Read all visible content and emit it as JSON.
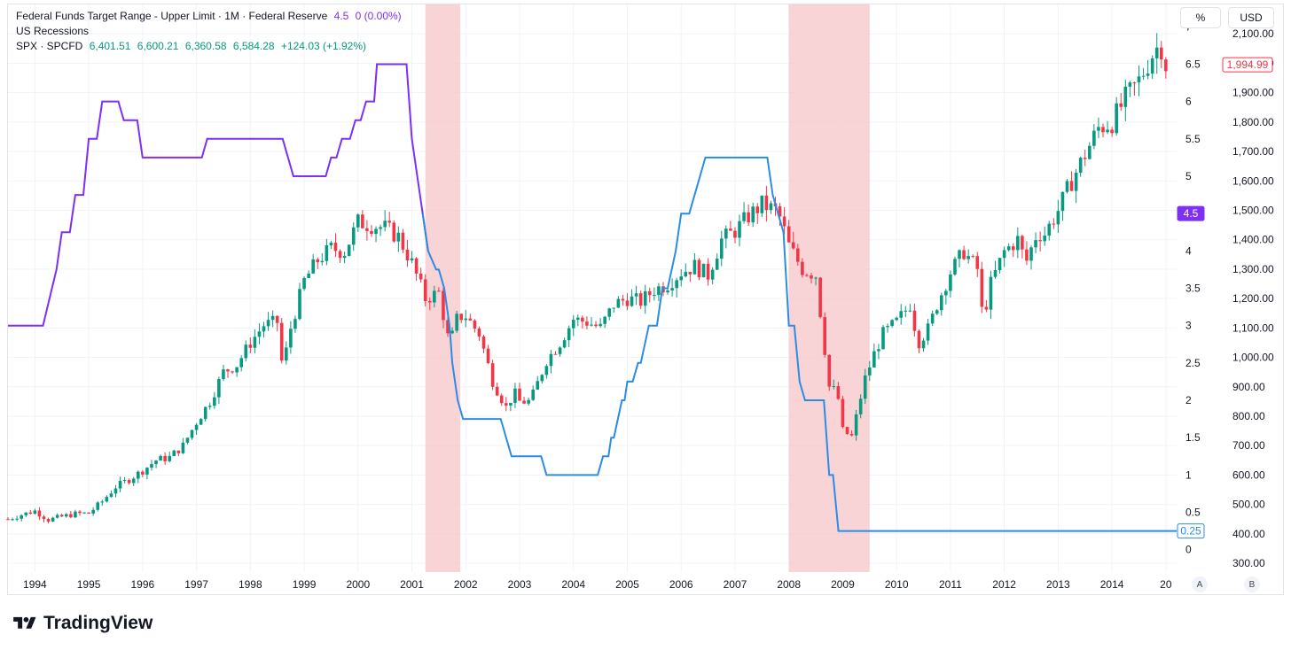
{
  "legend": {
    "fedfunds": {
      "title": "Federal Funds Target Range - Upper Limit · 1M · Federal Reserve",
      "value": "4.5",
      "change": "0 (0.00%)"
    },
    "recessions": {
      "title": "US Recessions"
    },
    "spx": {
      "title": "SPX · SPCFD",
      "open": "6,401.51",
      "high": "6,600.21",
      "low": "6,360.58",
      "close": "6,584.28",
      "change": "+124.03 (+1.92%)"
    }
  },
  "scales": {
    "left_unit": "%",
    "right_unit": "USD",
    "auto_label": "A",
    "log_label": "B"
  },
  "brand": {
    "name": "TradingView"
  },
  "colors": {
    "up": "#089981",
    "down": "#f23645",
    "fed_purple": "#7e2ff5",
    "fed_blue": "#2b8ce6",
    "recession": "#f7c5ca",
    "grid": "#f0f3fa",
    "text": "#131722",
    "price_tag": "#f23645"
  },
  "chart_data": {
    "type": "candlestick+line",
    "x_range": [
      1993.5,
      2015.2
    ],
    "x_tick_labels": [
      "1994",
      "1995",
      "1996",
      "1997",
      "1998",
      "1999",
      "2000",
      "2001",
      "2002",
      "2003",
      "2004",
      "2005",
      "2006",
      "2007",
      "2008",
      "2009",
      "2010",
      "2011",
      "2012",
      "2013",
      "2014",
      "20"
    ],
    "left_axis": {
      "unit": "%",
      "range": [
        -0.3,
        7.3
      ],
      "ticks": [
        "0",
        "0.5",
        "1",
        "1.5",
        "2",
        "2.5",
        "3",
        "3.5",
        "4",
        "4.5",
        "5",
        "5.5",
        "6",
        "6.5",
        "7"
      ]
    },
    "right_axis": {
      "unit": "USD",
      "range": [
        270,
        2200
      ],
      "ticks": [
        "300.00",
        "400.00",
        "500.00",
        "600.00",
        "700.00",
        "800.00",
        "900.00",
        "1,000.00",
        "1,100.00",
        "1,200.00",
        "1,300.00",
        "1,400.00",
        "1,500.00",
        "1,600.00",
        "1,700.00",
        "1,800.00",
        "1,900.00",
        "2,000.00",
        "2,100.00"
      ]
    },
    "recessions": [
      [
        2001.25,
        2001.9
      ],
      [
        2008.0,
        2009.5
      ]
    ],
    "fed_funds_upper": [
      [
        1993.5,
        3.0
      ],
      [
        1994.15,
        3.0
      ],
      [
        1994.4,
        3.75
      ],
      [
        1994.5,
        4.25
      ],
      [
        1994.65,
        4.25
      ],
      [
        1994.75,
        4.75
      ],
      [
        1994.9,
        4.75
      ],
      [
        1995.0,
        5.5
      ],
      [
        1995.15,
        5.5
      ],
      [
        1995.25,
        6.0
      ],
      [
        1995.55,
        6.0
      ],
      [
        1995.65,
        5.75
      ],
      [
        1995.9,
        5.75
      ],
      [
        1996.0,
        5.25
      ],
      [
        1997.1,
        5.25
      ],
      [
        1997.2,
        5.5
      ],
      [
        1998.6,
        5.5
      ],
      [
        1998.8,
        5.0
      ],
      [
        1999.4,
        5.0
      ],
      [
        1999.5,
        5.25
      ],
      [
        1999.6,
        5.25
      ],
      [
        1999.7,
        5.5
      ],
      [
        1999.85,
        5.5
      ],
      [
        1999.95,
        5.75
      ],
      [
        2000.05,
        5.75
      ],
      [
        2000.15,
        6.0
      ],
      [
        2000.3,
        6.0
      ],
      [
        2000.35,
        6.5
      ],
      [
        2000.5,
        6.5
      ],
      [
        2000.9,
        6.5
      ],
      [
        2001.0,
        5.5
      ],
      [
        2001.1,
        5.0
      ],
      [
        2001.2,
        4.5
      ],
      [
        2001.3,
        4.0
      ],
      [
        2001.45,
        3.75
      ],
      [
        2001.5,
        3.75
      ],
      [
        2001.6,
        3.5
      ],
      [
        2001.7,
        3.0
      ],
      [
        2001.75,
        2.5
      ],
      [
        2001.85,
        2.0
      ],
      [
        2001.95,
        1.75
      ],
      [
        2002.65,
        1.75
      ],
      [
        2002.85,
        1.25
      ],
      [
        2003.4,
        1.25
      ],
      [
        2003.5,
        1.0
      ],
      [
        2004.45,
        1.0
      ],
      [
        2004.55,
        1.25
      ],
      [
        2004.65,
        1.25
      ],
      [
        2004.7,
        1.5
      ],
      [
        2004.75,
        1.5
      ],
      [
        2004.9,
        2.0
      ],
      [
        2004.95,
        2.0
      ],
      [
        2005.0,
        2.25
      ],
      [
        2005.1,
        2.25
      ],
      [
        2005.2,
        2.5
      ],
      [
        2005.25,
        2.5
      ],
      [
        2005.4,
        3.0
      ],
      [
        2005.55,
        3.0
      ],
      [
        2005.65,
        3.5
      ],
      [
        2005.75,
        3.5
      ],
      [
        2005.9,
        4.0
      ],
      [
        2006.0,
        4.5
      ],
      [
        2006.15,
        4.5
      ],
      [
        2006.25,
        4.75
      ],
      [
        2006.35,
        5.0
      ],
      [
        2006.45,
        5.25
      ],
      [
        2007.6,
        5.25
      ],
      [
        2007.7,
        4.75
      ],
      [
        2007.8,
        4.5
      ],
      [
        2007.9,
        4.25
      ],
      [
        2008.0,
        3.0
      ],
      [
        2008.1,
        3.0
      ],
      [
        2008.2,
        2.25
      ],
      [
        2008.3,
        2.0
      ],
      [
        2008.65,
        2.0
      ],
      [
        2008.75,
        1.0
      ],
      [
        2008.82,
        1.0
      ],
      [
        2008.92,
        0.25
      ],
      [
        2015.2,
        0.25
      ]
    ],
    "spx_monthly_close": [
      [
        1993.5,
        450
      ],
      [
        1993.75,
        465
      ],
      [
        1994.0,
        478
      ],
      [
        1994.25,
        448
      ],
      [
        1994.5,
        458
      ],
      [
        1994.75,
        468
      ],
      [
        1995.0,
        470
      ],
      [
        1995.25,
        510
      ],
      [
        1995.5,
        560
      ],
      [
        1995.75,
        585
      ],
      [
        1996.0,
        615
      ],
      [
        1996.25,
        650
      ],
      [
        1996.5,
        660
      ],
      [
        1996.75,
        700
      ],
      [
        1997.0,
        780
      ],
      [
        1997.25,
        850
      ],
      [
        1997.5,
        950
      ],
      [
        1997.75,
        975
      ],
      [
        1998.0,
        1050
      ],
      [
        1998.25,
        1110
      ],
      [
        1998.5,
        1120
      ],
      [
        1998.6,
        960
      ],
      [
        1998.75,
        1100
      ],
      [
        1999.0,
        1260
      ],
      [
        1999.25,
        1330
      ],
      [
        1999.5,
        1370
      ],
      [
        1999.75,
        1360
      ],
      [
        2000.0,
        1460
      ],
      [
        2000.25,
        1450
      ],
      [
        2000.5,
        1440
      ],
      [
        2000.75,
        1410
      ],
      [
        2001.0,
        1320
      ],
      [
        2001.25,
        1200
      ],
      [
        2001.5,
        1220
      ],
      [
        2001.7,
        1040
      ],
      [
        2001.85,
        1140
      ],
      [
        2002.0,
        1140
      ],
      [
        2002.25,
        1080
      ],
      [
        2002.5,
        920
      ],
      [
        2002.75,
        830
      ],
      [
        2002.9,
        880
      ],
      [
        2003.0,
        850
      ],
      [
        2003.2,
        850
      ],
      [
        2003.5,
        990
      ],
      [
        2003.75,
        1050
      ],
      [
        2004.0,
        1130
      ],
      [
        2004.25,
        1120
      ],
      [
        2004.5,
        1100
      ],
      [
        2004.75,
        1180
      ],
      [
        2005.0,
        1200
      ],
      [
        2005.25,
        1190
      ],
      [
        2005.5,
        1230
      ],
      [
        2005.75,
        1250
      ],
      [
        2006.0,
        1290
      ],
      [
        2006.25,
        1310
      ],
      [
        2006.5,
        1280
      ],
      [
        2006.75,
        1400
      ],
      [
        2007.0,
        1430
      ],
      [
        2007.25,
        1480
      ],
      [
        2007.5,
        1520
      ],
      [
        2007.75,
        1500
      ],
      [
        2007.85,
        1470
      ],
      [
        2008.0,
        1380
      ],
      [
        2008.25,
        1300
      ],
      [
        2008.5,
        1280
      ],
      [
        2008.75,
        900
      ],
      [
        2008.9,
        880
      ],
      [
        2009.0,
        750
      ],
      [
        2009.17,
        730
      ],
      [
        2009.4,
        920
      ],
      [
        2009.6,
        1020
      ],
      [
        2009.75,
        1080
      ],
      [
        2010.0,
        1120
      ],
      [
        2010.25,
        1180
      ],
      [
        2010.4,
        1050
      ],
      [
        2010.6,
        1100
      ],
      [
        2010.75,
        1180
      ],
      [
        2011.0,
        1290
      ],
      [
        2011.25,
        1360
      ],
      [
        2011.5,
        1300
      ],
      [
        2011.6,
        1130
      ],
      [
        2011.75,
        1250
      ],
      [
        2012.0,
        1360
      ],
      [
        2012.25,
        1400
      ],
      [
        2012.4,
        1320
      ],
      [
        2012.6,
        1420
      ],
      [
        2012.75,
        1420
      ],
      [
        2013.0,
        1500
      ],
      [
        2013.25,
        1600
      ],
      [
        2013.5,
        1690
      ],
      [
        2013.75,
        1780
      ],
      [
        2014.0,
        1800
      ],
      [
        2014.25,
        1880
      ],
      [
        2014.5,
        1940
      ],
      [
        2014.75,
        2030
      ],
      [
        2014.9,
        2070
      ],
      [
        2015.0,
        1995
      ]
    ],
    "last_values": {
      "fed_funds": "4.5",
      "fed_funds_current": "0.25",
      "spx": "1,994.99"
    }
  }
}
